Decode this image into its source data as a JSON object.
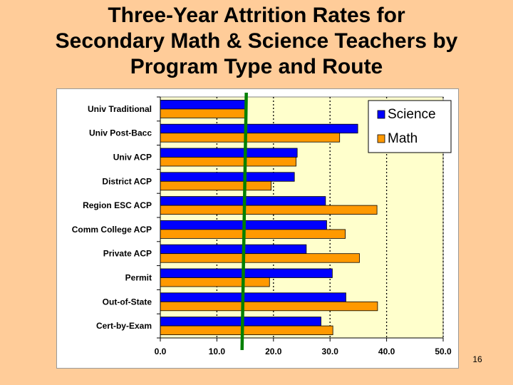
{
  "slide": {
    "title_lines": [
      "Three-Year Attrition Rates for",
      "Secondary Math & Science Teachers by",
      "Program Type and Route"
    ],
    "page_number": "16"
  },
  "colors": {
    "background": "#FFCC99",
    "plot_area": "#FFFFCC",
    "science": "#0000FF",
    "math": "#FF9900",
    "reference_line": "#008000"
  },
  "chart_data": {
    "type": "bar",
    "orientation": "horizontal",
    "categories": [
      "Univ Traditional",
      "Univ Post-Bacc",
      "Univ ACP",
      "District ACP",
      "Region ESC ACP",
      "Comm College ACP",
      "Private ACP",
      "Permit",
      "Out-of-State",
      "Cert-by-Exam"
    ],
    "series": [
      {
        "name": "Science",
        "color": "#0000FF",
        "values": [
          15.2,
          34.9,
          24.2,
          23.7,
          29.2,
          29.4,
          25.8,
          30.4,
          32.8,
          28.4
        ]
      },
      {
        "name": "Math",
        "color": "#FF9900",
        "values": [
          15.2,
          31.7,
          24.0,
          19.6,
          38.3,
          32.7,
          35.2,
          19.3,
          38.4,
          30.5
        ]
      }
    ],
    "xlim": [
      0,
      50
    ],
    "xticks": [
      "0.0",
      "10.0",
      "20.0",
      "30.0",
      "40.0",
      "50.0"
    ],
    "grid": "vertical dotted",
    "legend": "top-right",
    "reference_line_x": 15.2
  }
}
